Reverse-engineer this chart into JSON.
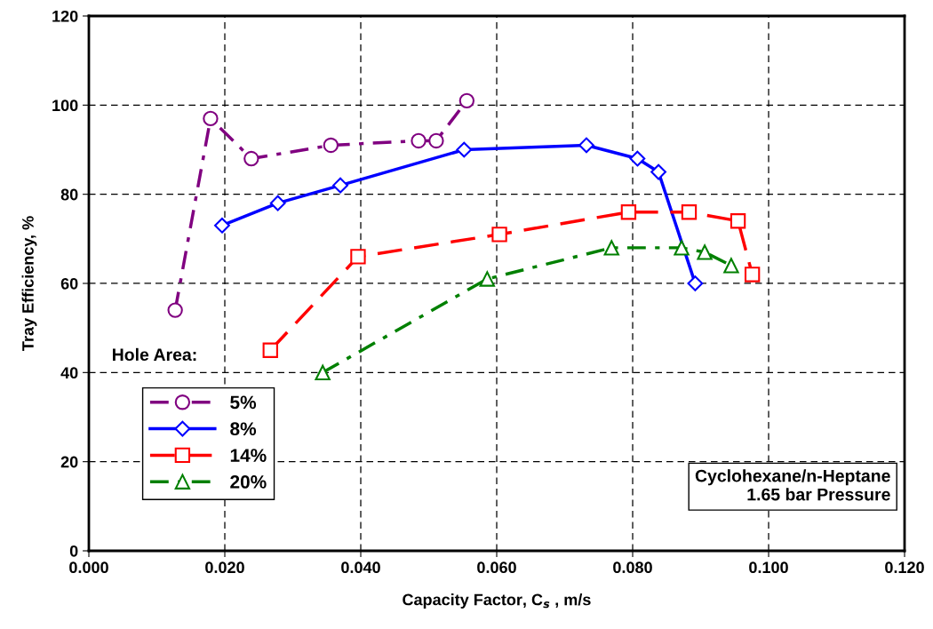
{
  "chart_data": {
    "type": "line",
    "xlabel": "Capacity Factor, C$_{s}$ , m/s",
    "ylabel": "Tray Efficiency, %",
    "legend_title": "Hole Area:",
    "legend": "bottom left",
    "grid": true,
    "xlim": [
      0,
      0.12
    ],
    "xticks": [
      {
        "value": 0,
        "label": "0.000"
      },
      {
        "value": 0.02,
        "label": "0.020"
      },
      {
        "value": 0.04,
        "label": "0.040"
      },
      {
        "value": 0.06,
        "label": "0.060"
      },
      {
        "value": 0.08,
        "label": "0.080"
      },
      {
        "value": 0.1,
        "label": "0.100"
      },
      {
        "value": 0.12,
        "label": "0.120"
      }
    ],
    "ylim": [
      0,
      120
    ],
    "yticks": [
      0,
      20,
      40,
      60,
      80,
      100,
      120
    ],
    "series": [
      {
        "name": "5%",
        "color": "#800080",
        "marker": "circle",
        "line_style": "dashdot",
        "x": [
          0.0127,
          0.0179,
          0.0239,
          0.0356,
          0.0485,
          0.0511,
          0.0556
        ],
        "values": [
          54,
          97,
          88,
          91,
          92,
          92,
          101
        ]
      },
      {
        "name": "8%",
        "color": "#0000ff",
        "marker": "diamond",
        "line_style": "solid",
        "x": [
          0.0196,
          0.0278,
          0.037,
          0.0552,
          0.0732,
          0.0807,
          0.0838,
          0.0892
        ],
        "values": [
          73,
          78,
          82,
          90,
          91,
          88,
          85,
          60
        ]
      },
      {
        "name": "14%",
        "color": "#ff0000",
        "marker": "square",
        "line_style": "dashed",
        "x": [
          0.0267,
          0.0396,
          0.0604,
          0.0794,
          0.0883,
          0.0955,
          0.0976
        ],
        "values": [
          45,
          66,
          71,
          76,
          76,
          74,
          62
        ]
      },
      {
        "name": "20%",
        "color": "#008000",
        "marker": "triangle",
        "line_style": "dashdot",
        "x": [
          0.0344,
          0.0586,
          0.0769,
          0.0872,
          0.0906,
          0.0945
        ],
        "values": [
          40,
          61,
          68,
          68,
          67,
          64
        ]
      }
    ],
    "annotations": [
      "Cyclohexane/n-Heptane\n1.65 bar Pressure"
    ]
  }
}
